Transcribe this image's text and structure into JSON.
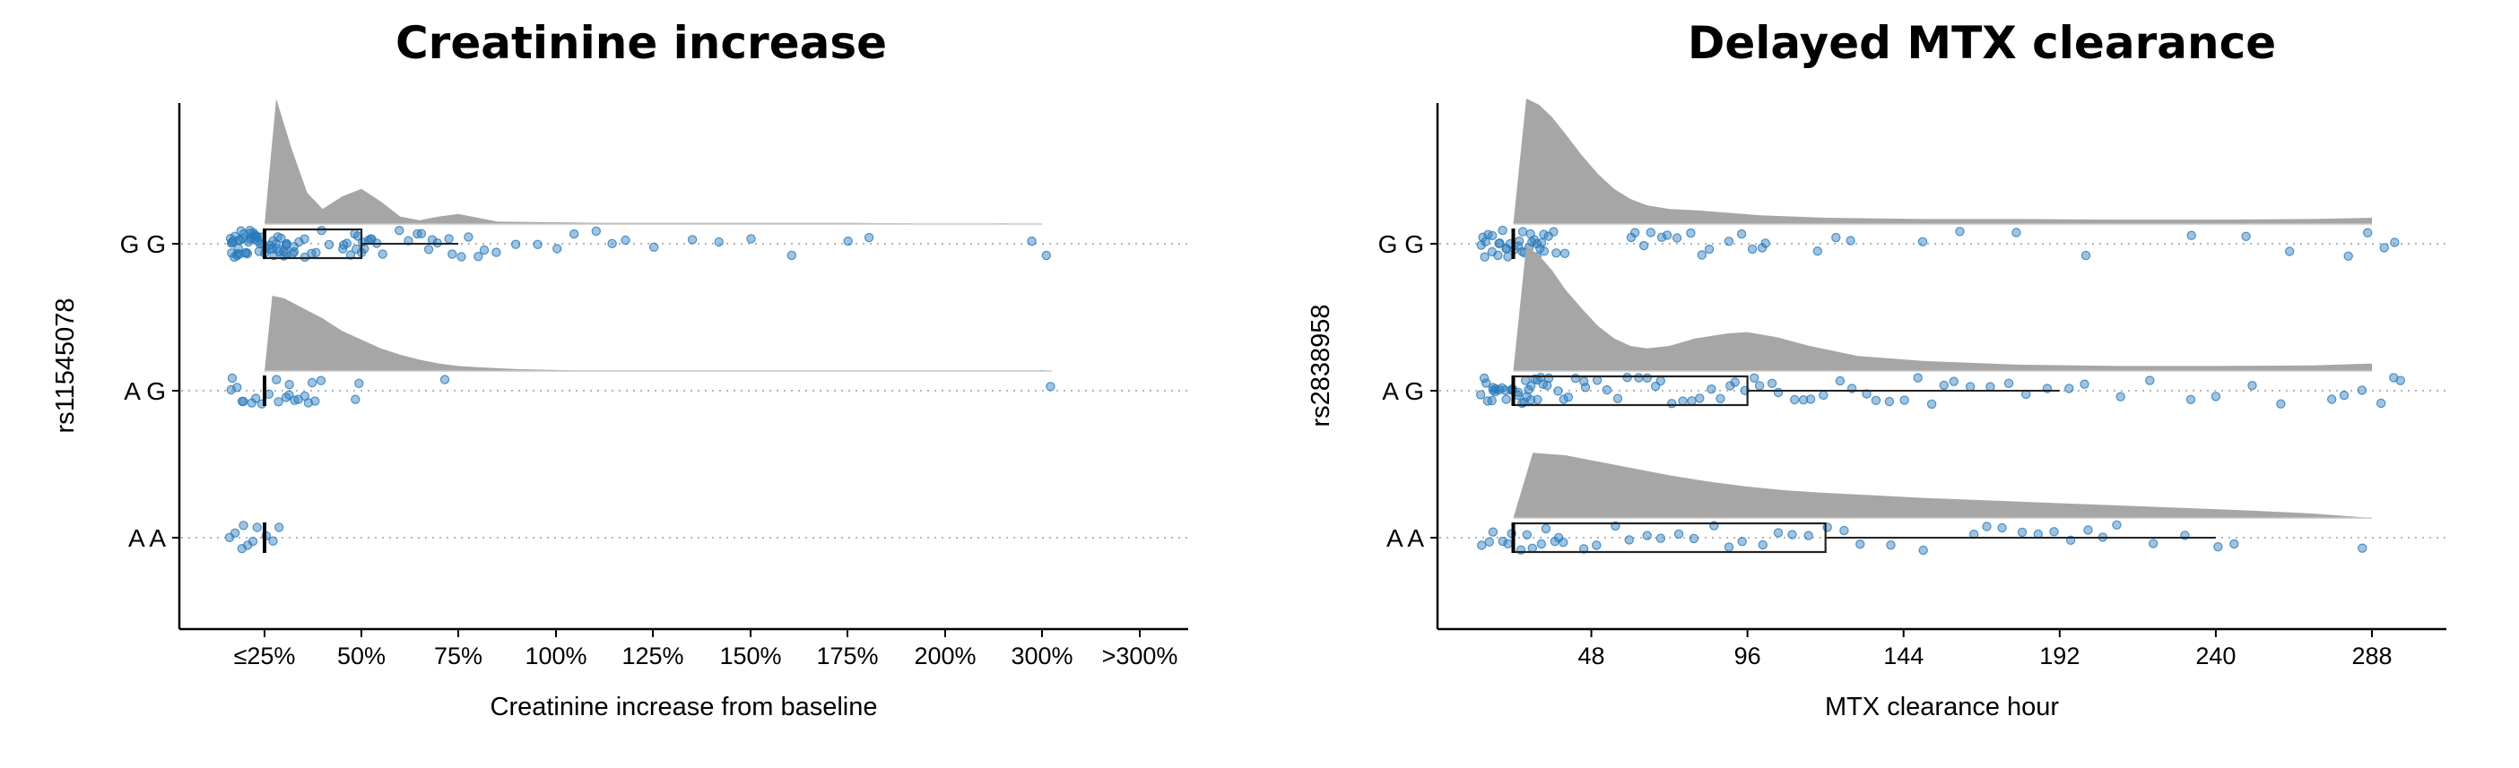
{
  "chart_data": [
    {
      "type": "raincloud",
      "title": "Creatinine increase",
      "xlabel": "Creatinine increase from baseline",
      "ylabel": "rs11545078",
      "x_ticks": [
        "≤25%",
        "50%",
        "75%",
        "100%",
        "125%",
        "150%",
        "175%",
        "200%",
        "300%",
        ">300%"
      ],
      "x_tick_values": [
        25,
        50,
        75,
        100,
        125,
        150,
        175,
        200,
        300,
        400
      ],
      "grid": "dotted horizontal reference line per genotype",
      "colors": {
        "density": "#a6a6a6",
        "points": "#2b7bba",
        "box": "#000000"
      },
      "groups": [
        {
          "name": "G G",
          "density_x": [
            25,
            28,
            32,
            36,
            40,
            45,
            50,
            55,
            60,
            65,
            70,
            75,
            80,
            85,
            95,
            110,
            130,
            150,
            175,
            190,
            210,
            260,
            300
          ],
          "density_h": [
            0,
            1.0,
            0.6,
            0.25,
            0.12,
            0.22,
            0.28,
            0.18,
            0.06,
            0.03,
            0.06,
            0.08,
            0.05,
            0.02,
            0.015,
            0.01,
            0.01,
            0.01,
            0.01,
            0.005,
            0,
            0.005,
            0
          ],
          "box": {
            "q1": 25,
            "median": 25,
            "q3": 50,
            "whisker_low": 25,
            "whisker_high": 75
          },
          "points": [
            16,
            17,
            18,
            19,
            20,
            21,
            22,
            23,
            24,
            16,
            17,
            18,
            19,
            20,
            21,
            22,
            23,
            24,
            16,
            17,
            18,
            19,
            20,
            21,
            22,
            23,
            24,
            17,
            18,
            19,
            20,
            21,
            22,
            23,
            24,
            25,
            26,
            27,
            28,
            29,
            30,
            31,
            32,
            26,
            27,
            28,
            29,
            30,
            31,
            32,
            27,
            28,
            29,
            30,
            31,
            33,
            34,
            36,
            38,
            35,
            37,
            40,
            42,
            45,
            46,
            47,
            48,
            49,
            50,
            51,
            52,
            53,
            46,
            48,
            50,
            52,
            54,
            56,
            60,
            62,
            65,
            66,
            67,
            68,
            70,
            72,
            74,
            76,
            78,
            80,
            82,
            85,
            90,
            95,
            100,
            105,
            110,
            115,
            118,
            125,
            135,
            142,
            150,
            160,
            175,
            180,
            292,
            305
          ]
        },
        {
          "name": "A G",
          "density_x": [
            25,
            27,
            30,
            35,
            40,
            45,
            50,
            55,
            60,
            65,
            70,
            75,
            80,
            90,
            100,
            110,
            290,
            300,
            310
          ],
          "density_h": [
            0,
            0.6,
            0.58,
            0.5,
            0.42,
            0.32,
            0.25,
            0.18,
            0.13,
            0.09,
            0.06,
            0.04,
            0.03,
            0.015,
            0.008,
            0,
            0,
            0.008,
            0
          ],
          "box": {
            "q1": 25,
            "median": 25,
            "q3": 25,
            "whisker_low": 25,
            "whisker_high": 25
          },
          "points": [
            16,
            18,
            20,
            22,
            24,
            16,
            19,
            23,
            26,
            28,
            30,
            32,
            34,
            36,
            38,
            40,
            29,
            31,
            33,
            35,
            37,
            48,
            49,
            72,
            310
          ]
        },
        {
          "name": "A A",
          "density_x": [],
          "density_h": [],
          "box": {
            "q1": 25,
            "median": 25,
            "q3": 25,
            "whisker_low": 25,
            "whisker_high": 25
          },
          "points": [
            16,
            18,
            19,
            20,
            21,
            22,
            23,
            25,
            27,
            29
          ]
        }
      ]
    },
    {
      "type": "raincloud",
      "title": "Delayed MTX clearance",
      "xlabel": "MTX clearance hour",
      "ylabel": "rs2838958",
      "x_ticks": [
        "48",
        "96",
        "144",
        "192",
        "240",
        "288"
      ],
      "x_tick_values": [
        48,
        96,
        144,
        192,
        240,
        288
      ],
      "xlim": [
        10,
        300
      ],
      "grid": "dotted horizontal reference line per genotype",
      "colors": {
        "density": "#a6a6a6",
        "points": "#2b7bba",
        "box": "#000000"
      },
      "groups": [
        {
          "name": "G G",
          "density_x": [
            24,
            28,
            32,
            36,
            40,
            45,
            50,
            55,
            60,
            65,
            72,
            80,
            90,
            100,
            120,
            150,
            180,
            210,
            240,
            270,
            288
          ],
          "density_h": [
            0,
            1.0,
            0.95,
            0.85,
            0.72,
            0.55,
            0.4,
            0.28,
            0.2,
            0.15,
            0.12,
            0.11,
            0.09,
            0.07,
            0.05,
            0.04,
            0.04,
            0.035,
            0.035,
            0.04,
            0.05
          ],
          "box": {
            "q1": 24,
            "median": 24,
            "q3": 24,
            "whisker_low": 24,
            "whisker_high": 24
          },
          "points": [
            14,
            15,
            16,
            17,
            18,
            19,
            20,
            21,
            22,
            23,
            24,
            15,
            17,
            19,
            21,
            23,
            25,
            26,
            27,
            28,
            29,
            30,
            31,
            32,
            33,
            34,
            25,
            27,
            29,
            31,
            33,
            35,
            36,
            38,
            40,
            60,
            62,
            64,
            66,
            70,
            72,
            75,
            78,
            82,
            85,
            90,
            95,
            98,
            100,
            102,
            118,
            124,
            128,
            150,
            162,
            178,
            200,
            232,
            250,
            262,
            281,
            287,
            292,
            295
          ]
        },
        {
          "name": "A G",
          "density_x": [
            24,
            28,
            32,
            36,
            40,
            45,
            50,
            55,
            60,
            65,
            72,
            80,
            90,
            96,
            105,
            115,
            130,
            150,
            180,
            210,
            240,
            270,
            288
          ],
          "density_h": [
            0,
            1.0,
            0.92,
            0.8,
            0.65,
            0.5,
            0.36,
            0.26,
            0.2,
            0.18,
            0.2,
            0.26,
            0.3,
            0.31,
            0.27,
            0.2,
            0.12,
            0.08,
            0.05,
            0.04,
            0.04,
            0.045,
            0.06
          ],
          "box": {
            "q1": 24,
            "median": 24,
            "q3": 96,
            "whisker_low": 24,
            "whisker_high": 192
          },
          "points": [
            14,
            15,
            16,
            17,
            18,
            19,
            20,
            21,
            22,
            23,
            24,
            25,
            26,
            27,
            28,
            29,
            30,
            31,
            32,
            33,
            34,
            15,
            17,
            19,
            21,
            23,
            25,
            27,
            29,
            31,
            33,
            35,
            37,
            39,
            41,
            43,
            45,
            47,
            50,
            53,
            56,
            59,
            62,
            65,
            68,
            70,
            73,
            76,
            79,
            82,
            85,
            88,
            90,
            92,
            95,
            98,
            100,
            103,
            106,
            110,
            113,
            116,
            120,
            124,
            128,
            132,
            136,
            140,
            144,
            148,
            152,
            156,
            160,
            165,
            170,
            176,
            182,
            188,
            195,
            200,
            210,
            220,
            232,
            240,
            252,
            260,
            275,
            280,
            285,
            290,
            294,
            296
          ]
        },
        {
          "name": "A A",
          "density_x": [
            24,
            30,
            40,
            50,
            60,
            72,
            84,
            96,
            108,
            120,
            135,
            150,
            170,
            190,
            210,
            230,
            250,
            270,
            288
          ],
          "density_h": [
            0,
            0.52,
            0.5,
            0.45,
            0.4,
            0.34,
            0.29,
            0.25,
            0.22,
            0.2,
            0.18,
            0.16,
            0.14,
            0.12,
            0.1,
            0.08,
            0.06,
            0.035,
            0
          ],
          "box": {
            "q1": 24,
            "median": 24,
            "q3": 120,
            "whisker_low": 24,
            "whisker_high": 240
          },
          "points": [
            14,
            16,
            18,
            20,
            22,
            24,
            26,
            28,
            30,
            32,
            34,
            36,
            38,
            40,
            45,
            50,
            55,
            60,
            65,
            70,
            75,
            80,
            85,
            90,
            95,
            100,
            105,
            110,
            115,
            120,
            125,
            130,
            140,
            150,
            165,
            170,
            175,
            180,
            185,
            190,
            195,
            200,
            205,
            210,
            220,
            230,
            240,
            245,
            285
          ]
        }
      ]
    }
  ]
}
